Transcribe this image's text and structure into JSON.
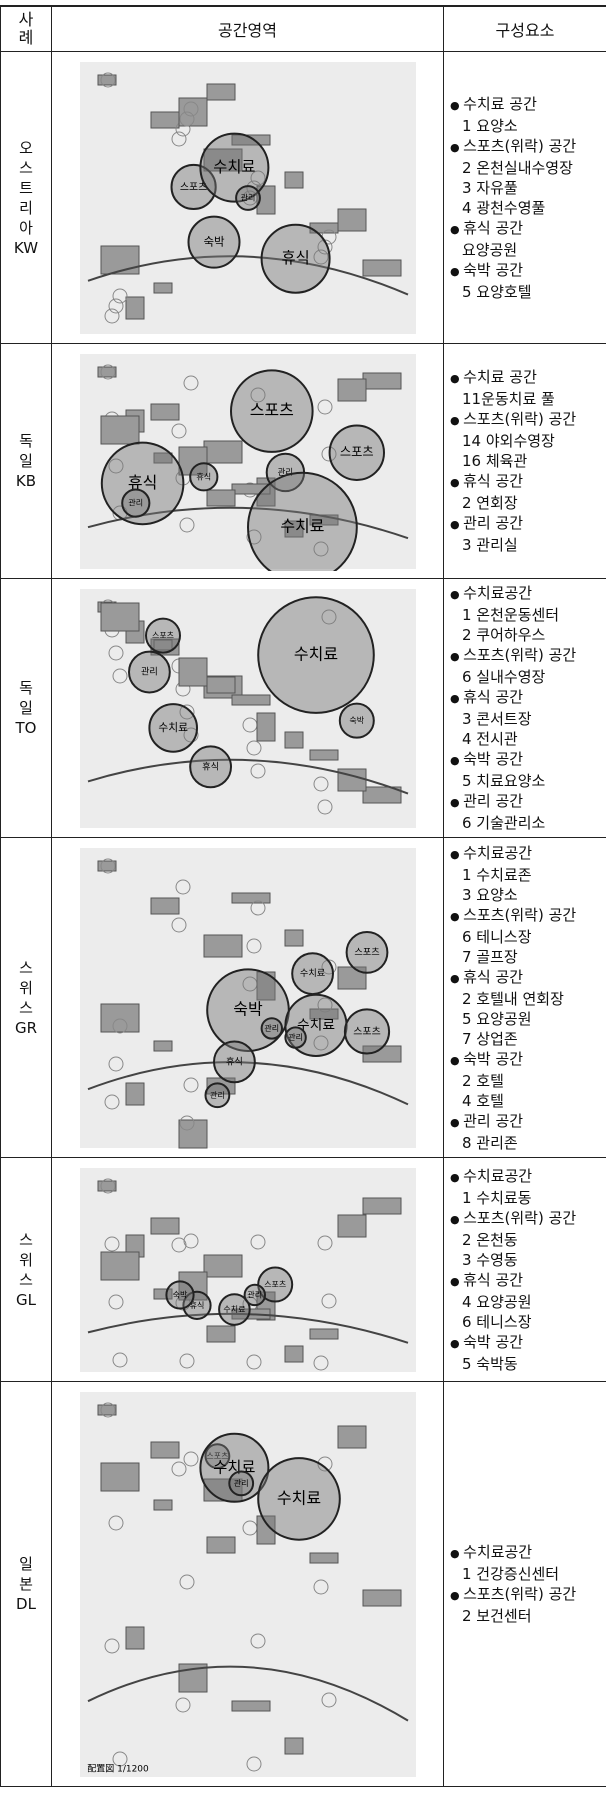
{
  "header": [
    "사례",
    "공간영역",
    "구성요소"
  ],
  "cases": [
    {
      "country": "오스트리아",
      "code": "KW",
      "zones": [
        "스포츠",
        "수치료",
        "관리",
        "숙박",
        "휴식"
      ],
      "components": [
        {
          "category": "수치료 공간",
          "items": [
            "1 요양소"
          ]
        },
        {
          "category": "스포츠(위락) 공간",
          "items": [
            "2 온천실내수영장",
            "3 자유풀",
            "4 광천수영풀"
          ]
        },
        {
          "category": "휴식 공간",
          "items": [
            "요양공원"
          ]
        },
        {
          "category": "숙박 공간",
          "items": [
            "5 요양호텔"
          ]
        }
      ]
    },
    {
      "country": "독일",
      "code": "KB",
      "zones": [
        "스포츠",
        "휴식",
        "관리",
        "스포츠",
        "휴식",
        "관리",
        "수치료"
      ],
      "components": [
        {
          "category": "수치료 공간",
          "items": [
            "11운동치료 풀"
          ]
        },
        {
          "category": "스포츠(위락) 공간",
          "items": [
            "14 야외수영장",
            "16 체육관"
          ]
        },
        {
          "category": "휴식 공간",
          "items": [
            "2 연회장"
          ]
        },
        {
          "category": "관리 공간",
          "items": [
            "3 관리실"
          ]
        }
      ]
    },
    {
      "country": "독일",
      "code": "TO",
      "zones": [
        "관리",
        "스포츠",
        "수치료",
        "숙박",
        "수치료",
        "휴식"
      ],
      "components": [
        {
          "category": "수치료공간",
          "items": [
            "1 온천운동센터",
            "2 쿠어하우스"
          ]
        },
        {
          "category": "스포츠(위락) 공간",
          "items": [
            "6 실내수영장"
          ]
        },
        {
          "category": "휴식 공간",
          "items": [
            "3 콘서트장",
            "4 전시관"
          ]
        },
        {
          "category": "숙박 공간",
          "items": [
            "5 치료요양소"
          ]
        },
        {
          "category": "관리 공간",
          "items": [
            "6 기술관리소"
          ]
        }
      ]
    },
    {
      "country": "스위스",
      "code": "GR",
      "zones": [
        "스포츠",
        "수치료",
        "숙박",
        "관리",
        "수치료",
        "관리",
        "스포츠",
        "휴식",
        "관리"
      ],
      "components": [
        {
          "category": "수치료공간",
          "items": [
            "1 수치료존",
            "3 요양소"
          ]
        },
        {
          "category": "스포츠(위락) 공간",
          "items": [
            "6 테니스장",
            "7 골프장"
          ]
        },
        {
          "category": "휴식 공간",
          "items": [
            "2 호텔내 연회장",
            "5 요양공원",
            "7 상업존"
          ]
        },
        {
          "category": "숙박 공간",
          "items": [
            "2 호텔",
            "4 호텔"
          ]
        },
        {
          "category": "관리 공간",
          "items": [
            "8 관리존"
          ]
        }
      ]
    },
    {
      "country": "스위스",
      "code": "GL",
      "zones": [
        "스포츠",
        "수치료",
        "휴식",
        "숙박",
        "관리"
      ],
      "components": [
        {
          "category": "수치료공간",
          "items": [
            "1 수치료동"
          ]
        },
        {
          "category": "스포츠(위락) 공간",
          "items": [
            "2 온천동",
            "3 수영동"
          ]
        },
        {
          "category": "휴식 공간",
          "items": [
            "4 요양공원",
            "6 테니스장"
          ]
        },
        {
          "category": "숙박 공간",
          "items": [
            "5 숙박동"
          ]
        }
      ]
    },
    {
      "country": "일본",
      "code": "DL",
      "zones": [
        "스포츠",
        "수치료",
        "관리",
        "수치료"
      ],
      "caption": "配置図 1/1200",
      "components": [
        {
          "category": "수치료공간",
          "items": [
            "1 건강증신센터"
          ]
        },
        {
          "category": "스포츠(위락) 공간",
          "items": [
            "2 보건센터"
          ]
        }
      ]
    }
  ]
}
